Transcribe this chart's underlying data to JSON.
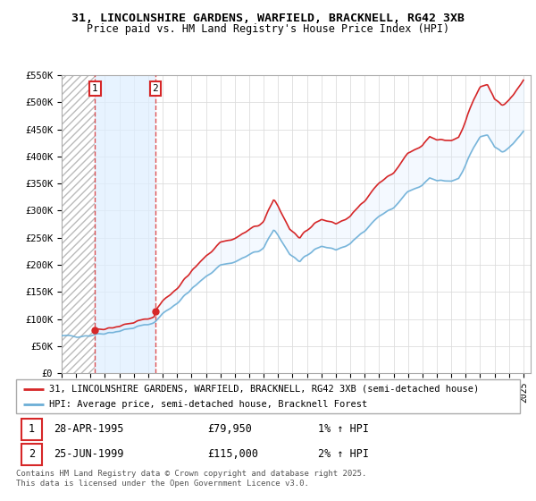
{
  "title1": "31, LINCOLNSHIRE GARDENS, WARFIELD, BRACKNELL, RG42 3XB",
  "title2": "Price paid vs. HM Land Registry's House Price Index (HPI)",
  "legend_line1": "31, LINCOLNSHIRE GARDENS, WARFIELD, BRACKNELL, RG42 3XB (semi-detached house)",
  "legend_line2": "HPI: Average price, semi-detached house, Bracknell Forest",
  "footer": "Contains HM Land Registry data © Crown copyright and database right 2025.\nThis data is licensed under the Open Government Licence v3.0.",
  "sale1_date": "28-APR-1995",
  "sale1_price": 79950,
  "sale1_year": 1995.32,
  "sale1_label": "1",
  "sale2_date": "25-JUN-1999",
  "sale2_price": 115000,
  "sale2_year": 1999.48,
  "sale2_label": "2",
  "hpi_color": "#6baed6",
  "price_color": "#d62728",
  "shade_color": "#ddeeff",
  "ylim_min": 0,
  "ylim_max": 550000,
  "yticks": [
    0,
    50000,
    100000,
    150000,
    200000,
    250000,
    300000,
    350000,
    400000,
    450000,
    500000,
    550000
  ],
  "ytick_labels": [
    "£0",
    "£50K",
    "£100K",
    "£150K",
    "£200K",
    "£250K",
    "£300K",
    "£350K",
    "£400K",
    "£450K",
    "£500K",
    "£550K"
  ]
}
